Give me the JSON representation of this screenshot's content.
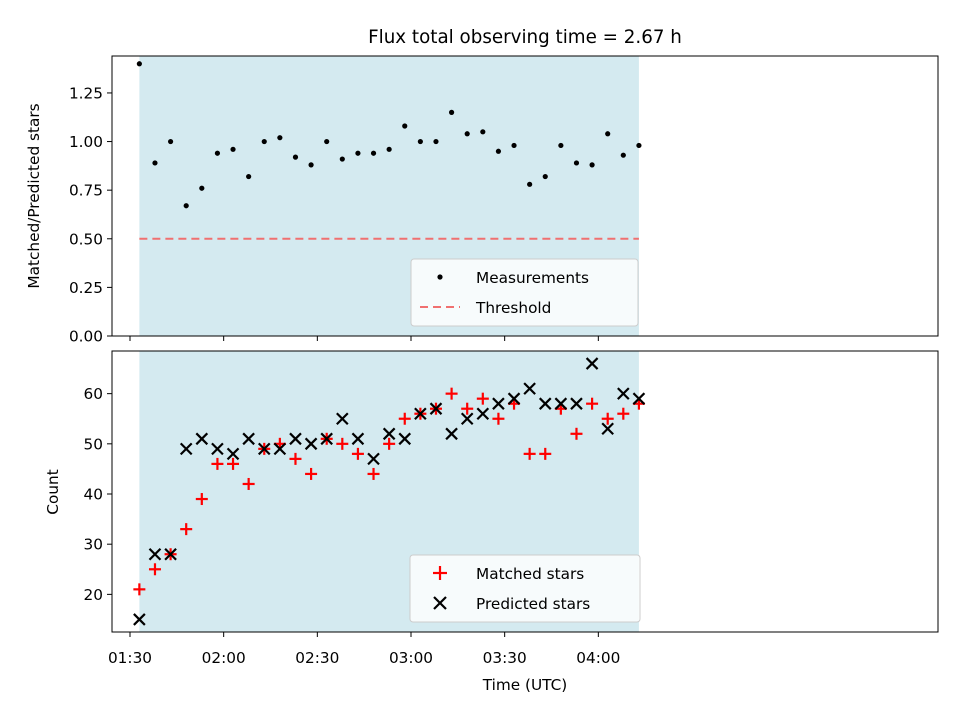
{
  "chart_data": {
    "title": "Flux total observing time = 2.67 h",
    "xlabel": "Time (UTC)",
    "x_tick_labels": [
      "01:30",
      "02:00",
      "02:30",
      "03:00",
      "03:30",
      "04:00"
    ],
    "x": [
      "01:33",
      "01:38",
      "01:43",
      "01:48",
      "01:53",
      "01:58",
      "02:03",
      "02:08",
      "02:13",
      "02:18",
      "02:23",
      "02:28",
      "02:33",
      "02:38",
      "02:43",
      "02:48",
      "02:53",
      "02:58",
      "03:03",
      "03:08",
      "03:13",
      "03:18",
      "03:23",
      "03:28",
      "03:33",
      "03:38",
      "03:43",
      "03:48",
      "03:53",
      "03:58",
      "04:03",
      "04:08",
      "04:13"
    ],
    "highlight_span": [
      "01:33",
      "04:13"
    ],
    "highlight_color": "#d4eaf0",
    "panels": [
      {
        "type": "scatter",
        "ylabel": "Matched/Predicted stars",
        "ylim": [
          0,
          1.44
        ],
        "y_ticks": [
          "0.00",
          "0.25",
          "0.50",
          "0.75",
          "1.00",
          "1.25"
        ],
        "series": [
          {
            "name": "Measurements",
            "marker": "dot",
            "color": "#000000",
            "values": [
              1.4,
              0.89,
              1.0,
              0.67,
              0.76,
              0.94,
              0.96,
              0.82,
              1.0,
              1.02,
              0.92,
              0.88,
              1.0,
              0.91,
              0.94,
              0.94,
              0.96,
              1.08,
              1.0,
              1.0,
              1.15,
              1.04,
              1.05,
              0.95,
              0.98,
              0.78,
              0.82,
              0.98,
              0.89,
              0.88,
              1.04,
              0.93,
              0.98
            ]
          }
        ],
        "threshold": {
          "name": "Threshold",
          "value": 0.5,
          "color": "#f07070"
        },
        "legend": [
          "Measurements",
          "Threshold"
        ],
        "legend_position": "lower-center"
      },
      {
        "type": "scatter",
        "ylabel": "Count",
        "ylim": [
          12.5,
          68.5
        ],
        "y_ticks": [
          "20",
          "30",
          "40",
          "50",
          "60"
        ],
        "series": [
          {
            "name": "Matched stars",
            "marker": "plus",
            "color": "#ff0000",
            "values": [
              21,
              25,
              28,
              33,
              39,
              46,
              46,
              42,
              49,
              50,
              47,
              44,
              51,
              50,
              48,
              44,
              50,
              55,
              56,
              57,
              60,
              57,
              59,
              55,
              58,
              48,
              48,
              57,
              52,
              58,
              55,
              56,
              58
            ]
          },
          {
            "name": "Predicted stars",
            "marker": "x",
            "color": "#000000",
            "values": [
              15,
              28,
              28,
              49,
              51,
              49,
              48,
              51,
              49,
              49,
              51,
              50,
              51,
              55,
              51,
              47,
              52,
              51,
              56,
              57,
              52,
              55,
              56,
              58,
              59,
              61,
              58,
              58,
              58,
              66,
              53,
              60,
              59
            ]
          }
        ],
        "legend": [
          "Matched stars",
          "Predicted stars"
        ],
        "legend_position": "lower-center"
      }
    ]
  }
}
